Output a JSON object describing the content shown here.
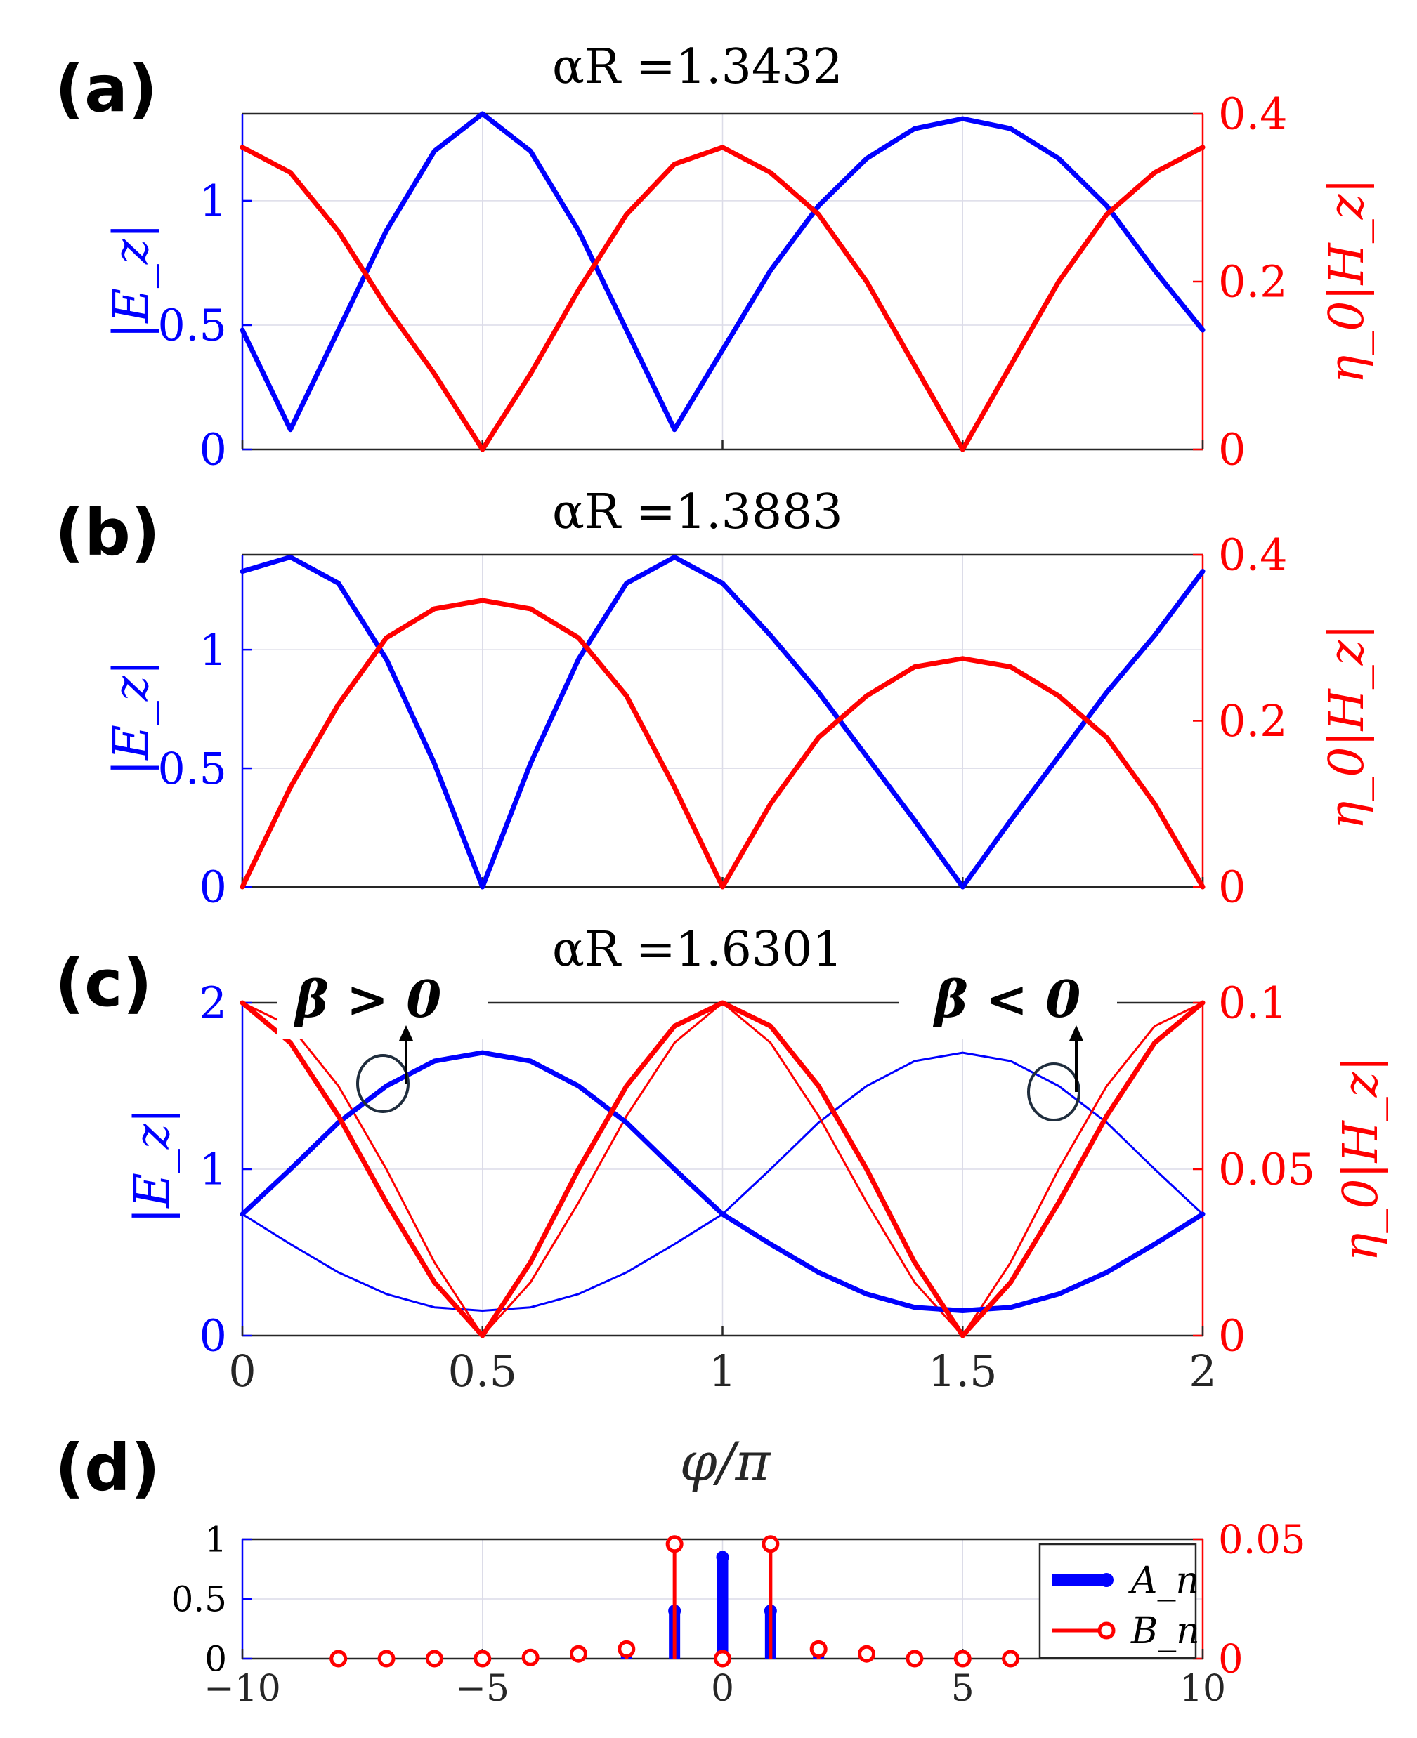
{
  "panels": [
    {
      "label": "(a)",
      "title": "αR =1.3432",
      "ylabel_left": "|E_z|",
      "ylabel_right": "η_0|H_z|"
    },
    {
      "label": "(b)",
      "title": "αR =1.3883",
      "ylabel_left": "|E_z|",
      "ylabel_right": "η_0|H_z|"
    },
    {
      "label": "(c)",
      "title": "αR =1.6301",
      "ylabel_left": "|E_z|",
      "ylabel_right": "η_0|H_z|",
      "annotation_left": "β > 0",
      "annotation_right": "β < 0"
    },
    {
      "label": "(d)"
    }
  ],
  "xlabel": "φ/π",
  "colors": {
    "E": "#0000ff",
    "H": "#ff0000",
    "grid": "#dcdce8",
    "axis": "#262626"
  },
  "chart_data": [
    {
      "type": "line",
      "title": "αR =1.3432",
      "x": [
        0,
        0.1,
        0.2,
        0.3,
        0.4,
        0.5,
        0.6,
        0.7,
        0.8,
        0.9,
        1.0,
        1.1,
        1.2,
        1.3,
        1.4,
        1.5,
        1.6,
        1.7,
        1.8,
        1.9,
        2.0
      ],
      "xlim": [
        0,
        2
      ],
      "yleft_lim": [
        0,
        1.35
      ],
      "yleft_ticks": [
        0,
        0.5,
        1
      ],
      "yright_lim": [
        0,
        0.4
      ],
      "yright_ticks": [
        0,
        0.2,
        0.4
      ],
      "grid": true,
      "series": [
        {
          "axis": "left",
          "color": "#0000ff",
          "width": "thick",
          "values": [
            0.48,
            0.08,
            0.48,
            0.88,
            1.2,
            1.35,
            1.2,
            0.88,
            0.48,
            0.08,
            0.4,
            0.72,
            0.98,
            1.17,
            1.29,
            1.33,
            1.29,
            1.17,
            0.98,
            0.72,
            0.48
          ]
        },
        {
          "axis": "right",
          "color": "#ff0000",
          "width": "thick",
          "values": [
            0.36,
            0.33,
            0.26,
            0.17,
            0.09,
            0.0,
            0.09,
            0.19,
            0.28,
            0.34,
            0.36,
            0.33,
            0.28,
            0.2,
            0.1,
            0.0,
            0.1,
            0.2,
            0.28,
            0.33,
            0.36
          ]
        }
      ]
    },
    {
      "type": "line",
      "title": "αR =1.3883",
      "x": [
        0,
        0.1,
        0.2,
        0.3,
        0.4,
        0.5,
        0.6,
        0.7,
        0.8,
        0.9,
        1.0,
        1.1,
        1.2,
        1.3,
        1.4,
        1.5,
        1.6,
        1.7,
        1.8,
        1.9,
        2.0
      ],
      "xlim": [
        0,
        2
      ],
      "yleft_lim": [
        0,
        1.4
      ],
      "yleft_ticks": [
        0,
        0.5,
        1
      ],
      "yright_lim": [
        0,
        0.4
      ],
      "yright_ticks": [
        0,
        0.2,
        0.4
      ],
      "grid": true,
      "series": [
        {
          "axis": "left",
          "color": "#0000ff",
          "width": "thick",
          "values": [
            1.33,
            1.39,
            1.28,
            0.96,
            0.52,
            0.0,
            0.52,
            0.96,
            1.28,
            1.39,
            1.28,
            1.06,
            0.82,
            0.55,
            0.28,
            0.0,
            0.28,
            0.55,
            0.82,
            1.06,
            1.33
          ]
        },
        {
          "axis": "right",
          "color": "#ff0000",
          "width": "thick",
          "values": [
            0.0,
            0.12,
            0.22,
            0.3,
            0.335,
            0.345,
            0.335,
            0.3,
            0.23,
            0.12,
            0.0,
            0.1,
            0.18,
            0.23,
            0.265,
            0.275,
            0.265,
            0.23,
            0.18,
            0.1,
            0.0
          ]
        }
      ]
    },
    {
      "type": "line",
      "title": "αR =1.6301",
      "x": [
        0,
        0.1,
        0.2,
        0.3,
        0.4,
        0.5,
        0.6,
        0.7,
        0.8,
        0.9,
        1.0,
        1.1,
        1.2,
        1.3,
        1.4,
        1.5,
        1.6,
        1.7,
        1.8,
        1.9,
        2.0
      ],
      "xlim": [
        0,
        2
      ],
      "xticks": [
        0,
        0.5,
        1,
        1.5,
        2
      ],
      "yleft_lim": [
        0,
        2
      ],
      "yleft_ticks": [
        0,
        1,
        2
      ],
      "yright_lim": [
        0,
        0.1
      ],
      "yright_ticks": [
        0,
        0.05,
        0.1
      ],
      "grid": true,
      "series": [
        {
          "name": "β > 0",
          "axis": "left",
          "color": "#0000ff",
          "width": "thick",
          "values": [
            0.73,
            1.0,
            1.28,
            1.5,
            1.65,
            1.7,
            1.65,
            1.5,
            1.28,
            1.0,
            0.73,
            0.55,
            0.38,
            0.25,
            0.17,
            0.15,
            0.17,
            0.25,
            0.38,
            0.55,
            0.73
          ]
        },
        {
          "name": "β < 0",
          "axis": "left",
          "color": "#0000ff",
          "width": "thin",
          "values": [
            0.73,
            0.55,
            0.38,
            0.25,
            0.17,
            0.15,
            0.17,
            0.25,
            0.38,
            0.55,
            0.73,
            1.0,
            1.28,
            1.5,
            1.65,
            1.7,
            1.65,
            1.5,
            1.28,
            1.0,
            0.73
          ]
        },
        {
          "name": "β > 0",
          "axis": "right",
          "color": "#ff0000",
          "width": "thick",
          "values": [
            0.1,
            0.088,
            0.066,
            0.04,
            0.016,
            0.0,
            0.022,
            0.05,
            0.075,
            0.093,
            0.1,
            0.093,
            0.075,
            0.05,
            0.022,
            0.0,
            0.016,
            0.04,
            0.066,
            0.088,
            0.1
          ]
        },
        {
          "name": "β < 0",
          "axis": "right",
          "color": "#ff0000",
          "width": "thin",
          "values": [
            0.1,
            0.093,
            0.075,
            0.05,
            0.022,
            0.0,
            0.016,
            0.04,
            0.066,
            0.088,
            0.1,
            0.088,
            0.066,
            0.04,
            0.016,
            0.0,
            0.022,
            0.05,
            0.075,
            0.093,
            0.1
          ]
        }
      ]
    },
    {
      "type": "stem",
      "xlim": [
        -10,
        10
      ],
      "xticks": [
        -10,
        -5,
        0,
        5,
        10
      ],
      "yleft_lim": [
        0,
        1
      ],
      "yleft_ticks": [
        0,
        0.5,
        1
      ],
      "yright_lim": [
        0,
        0.05
      ],
      "yright_ticks": [
        0,
        0.05
      ],
      "grid": true,
      "legend": "right",
      "series": [
        {
          "name": "A_n",
          "axis": "left",
          "color": "#0000ff",
          "n": [
            -8,
            -7,
            -6,
            -5,
            -4,
            -3,
            -2,
            -1,
            0,
            1,
            2,
            3,
            4,
            5,
            6
          ],
          "values": [
            0.0,
            0.0,
            0.0,
            0.0,
            0.01,
            0.03,
            0.07,
            0.4,
            0.85,
            0.4,
            0.07,
            0.03,
            0.0,
            0.0,
            0.0
          ]
        },
        {
          "name": "B_n",
          "axis": "right",
          "color": "#ff0000",
          "n": [
            -8,
            -7,
            -6,
            -5,
            -4,
            -3,
            -2,
            -1,
            0,
            1,
            2,
            3,
            4,
            5,
            6
          ],
          "values": [
            0.0,
            0.0,
            0.0,
            0.0,
            0.0005,
            0.002,
            0.004,
            0.048,
            0.0,
            0.048,
            0.004,
            0.002,
            0.0,
            0.0,
            0.0
          ]
        }
      ]
    }
  ]
}
